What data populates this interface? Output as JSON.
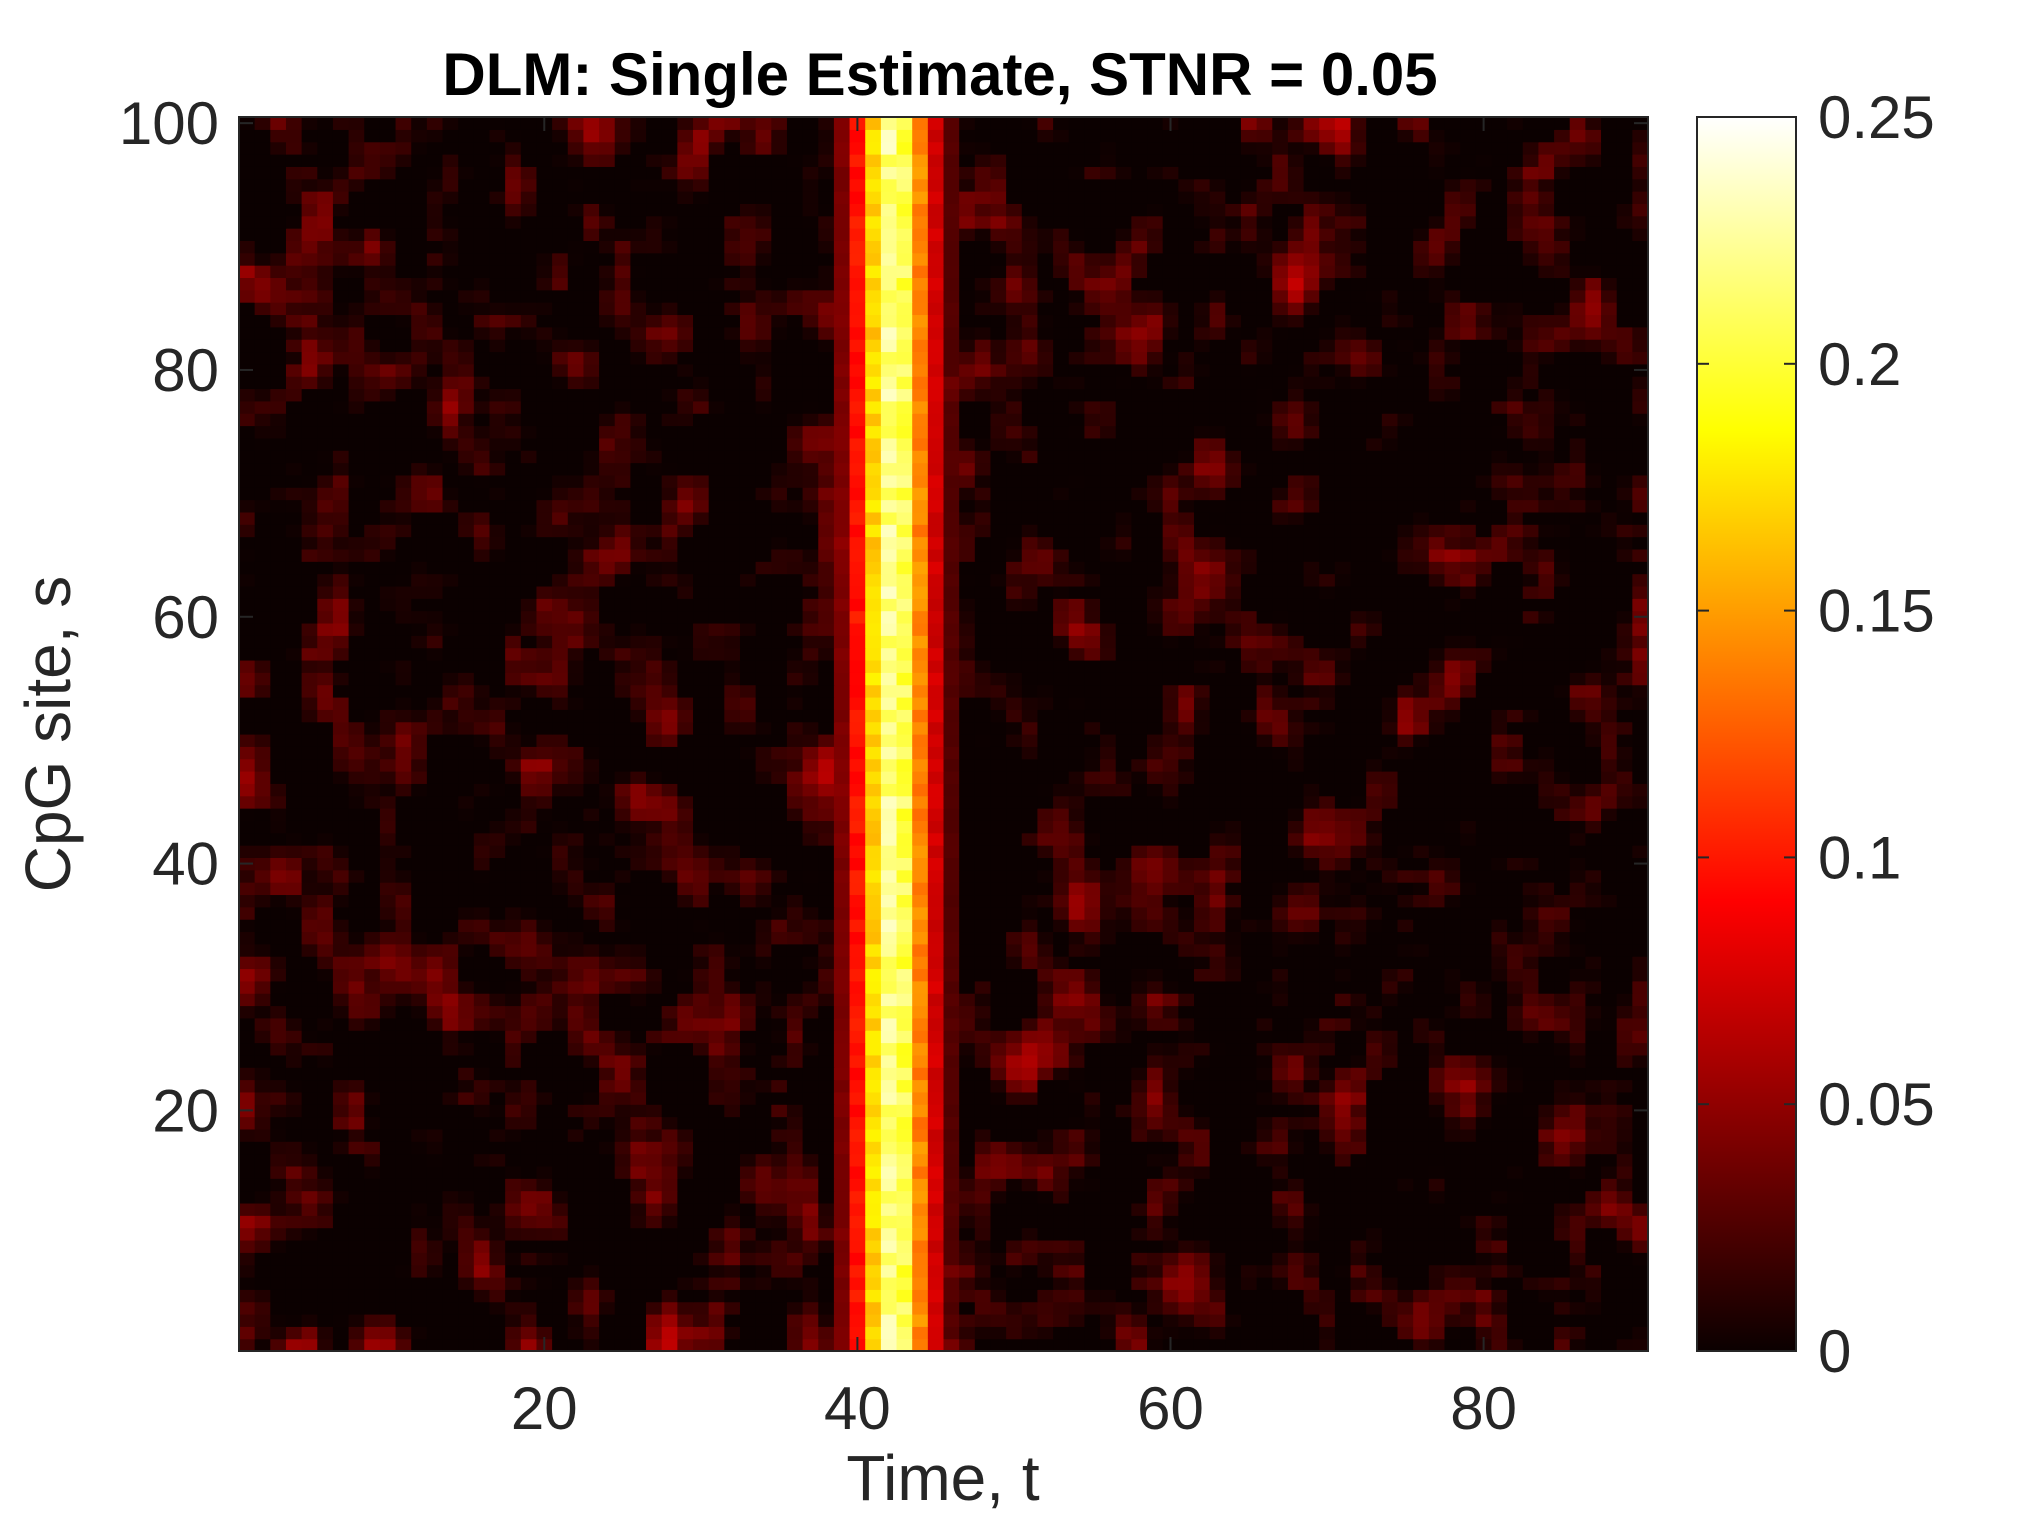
{
  "chart_data": {
    "type": "heatmap",
    "title": "DLM: Single Estimate, STNR = 0.05",
    "xlabel": "Time, t",
    "ylabel": "CpG site, s",
    "xlim": [
      0.5,
      90.5
    ],
    "ylim": [
      0.5,
      100.5
    ],
    "x_count": 90,
    "y_count": 100,
    "xticks": [
      20,
      40,
      60,
      80
    ],
    "yticks": [
      20,
      40,
      60,
      80,
      100
    ],
    "colormap": "hot",
    "colorbar": {
      "range": [
        0,
        0.25
      ],
      "ticks": [
        0,
        0.05,
        0.1,
        0.15,
        0.2,
        0.25
      ],
      "tick_labels": [
        "0",
        "0.05",
        "0.1",
        "0.15",
        "0.2",
        "0.25"
      ]
    },
    "signal_band": {
      "t_center": 42,
      "t_range": [
        38,
        45
      ],
      "peak_value": 0.24
    },
    "background_level": [
      0,
      0.07
    ],
    "grid": false
  }
}
